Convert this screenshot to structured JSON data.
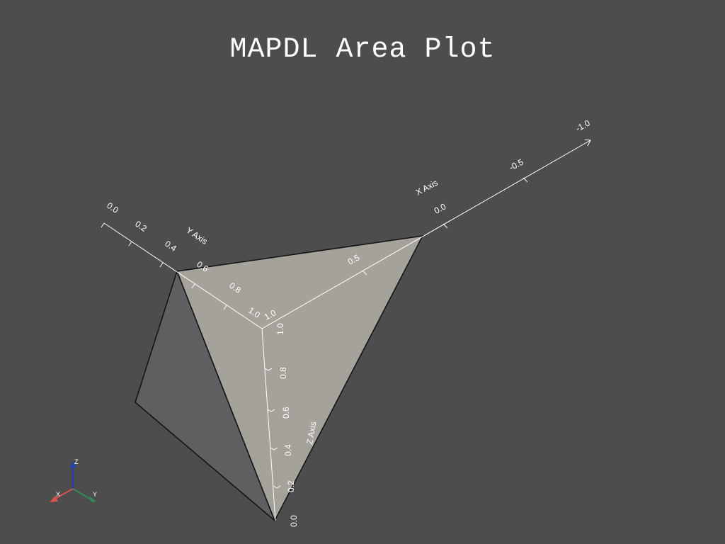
{
  "title": "MAPDL Area Plot",
  "colors": {
    "background": "#4d4d4d",
    "face_front": "#a5a29b",
    "face_side": "#5f5f62",
    "edge": "#111111",
    "axis": "#ffffff",
    "triad_x": "#d9534f",
    "triad_y": "#2e8b57",
    "triad_z": "#1f3fbf"
  },
  "axes": {
    "x": {
      "title": "X Axis",
      "ticks": [
        "0.0",
        "-0.5",
        "-1.0"
      ]
    },
    "y": {
      "title": "Y Axis",
      "ticks": [
        "0.0",
        "0.2",
        "0.4",
        "0.6",
        "0.8",
        "1.0"
      ]
    },
    "z": {
      "title": "Z Axis",
      "ticks": [
        "0.0",
        "0.2",
        "0.4",
        "0.6",
        "0.8",
        "1.0"
      ]
    },
    "x_origin_label": "1.0"
  },
  "orientation_triad": {
    "x": "X",
    "y": "Y",
    "z": "Z"
  }
}
